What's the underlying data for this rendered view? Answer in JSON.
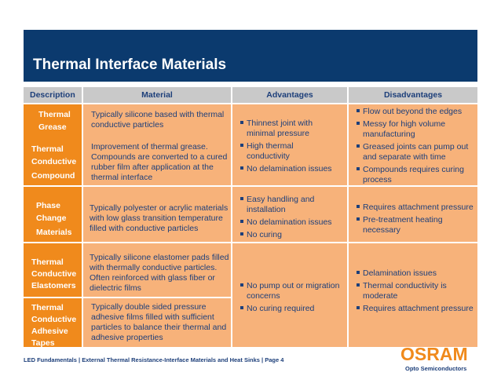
{
  "slide": {
    "title": "Thermal Interface Materials",
    "footer": "LED Fundamentals | External Thermal Resistance-Interface Materials and Heat Sinks |  Page 4",
    "logo": "OSRAM",
    "logo_subtitle": "Opto Semiconductors"
  },
  "table": {
    "headers": [
      "Description",
      "Material",
      "Advantages",
      "Disadvantages"
    ],
    "descriptions": [
      [
        "Thermal",
        "Grease"
      ],
      [
        "Thermal",
        "Conductive",
        "Compound"
      ],
      [
        "Phase",
        "Change",
        "Materials"
      ],
      [
        "Thermal",
        "Conductive",
        "Elastomers"
      ],
      [
        "Thermal",
        "Conductive",
        "Adhesive",
        "Tapes"
      ]
    ],
    "materials": [
      [
        "Typically silicone based with thermal",
        "conductive particles"
      ],
      [
        "Improvement of thermal grease.",
        "Compounds are converted to a cured",
        "rubber film after application at the",
        "thermal interface"
      ],
      [
        "Typically polyester or acrylic materials",
        "with low glass transition temperature",
        "filled with conductive particles"
      ],
      [
        "Typically silicone elastomer pads filled",
        "with thermally conductive particles.",
        "Often reinforced with glass fiber or",
        "dielectric films"
      ],
      [
        "Typically double sided pressure",
        "adhesive films filled with sufficient",
        "particles to balance their thermal and",
        "adhesive properties"
      ]
    ],
    "advantages": [
      [
        [
          "Thinnest joint with",
          "minimal pressure"
        ],
        [
          "High thermal",
          "conductivity"
        ],
        [
          "No delamination issues"
        ]
      ],
      [
        [
          "Easy handling and",
          "installation"
        ],
        [
          "No delamination issues"
        ],
        [
          "No curing"
        ]
      ],
      [
        [
          "No pump out or migration",
          "concerns"
        ],
        [
          "No curing required"
        ]
      ]
    ],
    "disadvantages": [
      [
        [
          "Flow out beyond the edges"
        ],
        [
          "Messy for high volume",
          "manufacturing"
        ],
        [
          "Greased joints can pump out",
          "and separate with time"
        ],
        [
          "Compounds requires curing",
          "process"
        ]
      ],
      [
        [
          "Requires attachment pressure"
        ],
        [
          "Pre-treatment heating",
          "necessary"
        ]
      ],
      [
        [
          "Delamination issues"
        ],
        [
          "Thermal conductivity is",
          "moderate"
        ],
        [
          "Requires attachment pressure"
        ]
      ]
    ]
  }
}
